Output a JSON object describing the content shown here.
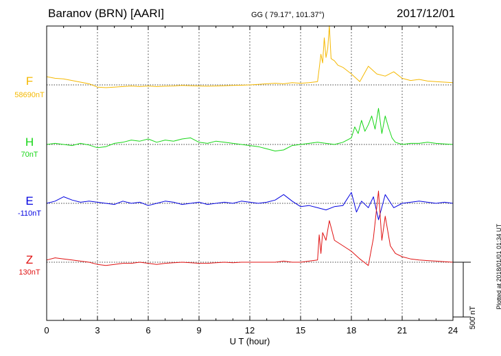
{
  "header": {
    "station": "Baranov (BRN)  [AARI]",
    "coords": "GG ( 79.17°, 101.37°)",
    "date": "2017/12/01"
  },
  "footer": {
    "plotted_note": "Plotted at 2018/01/01 01:34 UT"
  },
  "colors": {
    "F": "#f5b800",
    "H": "#16d616",
    "E": "#0000e0",
    "Z": "#e01010"
  },
  "chart_data": {
    "type": "line",
    "title": "Baranov (BRN)  [AARI]",
    "xlabel": "U T (hour)",
    "ylabel": "",
    "xlim": [
      0,
      24
    ],
    "x_ticks": [
      "0",
      "3",
      "6",
      "9",
      "12",
      "15",
      "18",
      "21",
      "24"
    ],
    "grid": true,
    "scale_bar": {
      "value": 500,
      "label": "500 nT"
    },
    "series": [
      {
        "name": "F",
        "baseline_label": "58690nT",
        "color": "#f5b800",
        "x": [
          0,
          0.5,
          1,
          1.5,
          2,
          2.5,
          3,
          3.5,
          4,
          4.5,
          5,
          5.5,
          6,
          6.5,
          7,
          7.5,
          8,
          8.5,
          9,
          9.5,
          10,
          10.5,
          11,
          11.5,
          12,
          12.5,
          13,
          13.5,
          14,
          14.5,
          15,
          15.5,
          16,
          16.1,
          16.2,
          16.3,
          16.4,
          16.5,
          16.6,
          16.7,
          16.8,
          17,
          17.2,
          17.5,
          18,
          18.5,
          19,
          19.5,
          20,
          20.5,
          21,
          21.5,
          22,
          22.5,
          23,
          23.5,
          24
        ],
        "y": [
          75,
          60,
          55,
          40,
          25,
          10,
          -20,
          -25,
          -20,
          -15,
          -10,
          -15,
          -10,
          -15,
          -12,
          -10,
          -5,
          -8,
          -10,
          -12,
          -10,
          -8,
          -5,
          -3,
          0,
          5,
          10,
          15,
          10,
          20,
          15,
          20,
          30,
          150,
          280,
          200,
          430,
          250,
          330,
          540,
          240,
          220,
          180,
          160,
          100,
          30,
          170,
          100,
          80,
          120,
          60,
          40,
          50,
          35,
          30,
          25,
          20
        ]
      },
      {
        "name": "H",
        "baseline_label": "70nT",
        "color": "#16d616",
        "x": [
          0,
          0.5,
          1,
          1.5,
          2,
          2.5,
          3,
          3.5,
          4,
          4.5,
          5,
          5.5,
          6,
          6.5,
          7,
          7.5,
          8,
          8.5,
          9,
          9.5,
          10,
          10.5,
          11,
          11.5,
          12,
          12.5,
          13,
          13.5,
          14,
          14.5,
          15,
          15.5,
          16,
          16.5,
          17,
          17.5,
          18,
          18.2,
          18.4,
          18.6,
          18.8,
          19,
          19.2,
          19.4,
          19.6,
          19.8,
          20,
          20.2,
          20.4,
          20.6,
          21,
          21.5,
          22,
          22.5,
          23,
          23.5,
          24
        ],
        "y": [
          0,
          10,
          0,
          -10,
          10,
          -5,
          -30,
          -20,
          10,
          20,
          40,
          30,
          50,
          20,
          40,
          30,
          50,
          60,
          20,
          10,
          30,
          20,
          10,
          0,
          -10,
          -20,
          -40,
          -60,
          -50,
          -10,
          0,
          10,
          20,
          10,
          0,
          20,
          60,
          160,
          100,
          220,
          120,
          180,
          260,
          140,
          330,
          100,
          260,
          150,
          60,
          20,
          0,
          10,
          10,
          20,
          10,
          5,
          0
        ]
      },
      {
        "name": "E",
        "baseline_label": "-110nT",
        "color": "#0000e0",
        "x": [
          0,
          0.5,
          1,
          1.5,
          2,
          2.5,
          3,
          3.5,
          4,
          4.5,
          5,
          5.5,
          6,
          6.5,
          7,
          7.5,
          8,
          8.5,
          9,
          9.5,
          10,
          10.5,
          11,
          11.5,
          12,
          12.5,
          13,
          13.5,
          14,
          14.5,
          15,
          15.5,
          16,
          16.5,
          17,
          17.5,
          18,
          18.3,
          18.6,
          19,
          19.3,
          19.6,
          20,
          20.5,
          21,
          21.5,
          22,
          22.5,
          23,
          23.5,
          24
        ],
        "y": [
          0,
          20,
          60,
          30,
          10,
          20,
          10,
          0,
          -10,
          20,
          0,
          10,
          -20,
          0,
          20,
          10,
          -10,
          0,
          10,
          -10,
          0,
          10,
          0,
          20,
          10,
          0,
          10,
          30,
          80,
          20,
          -30,
          -20,
          -40,
          -60,
          -30,
          -20,
          100,
          -80,
          20,
          -40,
          60,
          -150,
          80,
          -40,
          0,
          10,
          20,
          10,
          0,
          10,
          0
        ]
      },
      {
        "name": "Z",
        "baseline_label": "130nT",
        "color": "#e01010",
        "x": [
          0,
          0.5,
          1,
          1.5,
          2,
          2.5,
          3,
          3.5,
          4,
          4.5,
          5,
          5.5,
          6,
          6.5,
          7,
          7.5,
          8,
          8.5,
          9,
          9.5,
          10,
          10.5,
          11,
          11.5,
          12,
          12.5,
          13,
          13.5,
          14,
          14.5,
          15,
          15.5,
          16,
          16.1,
          16.2,
          16.3,
          16.5,
          16.7,
          17,
          17.5,
          18,
          18.5,
          19,
          19.3,
          19.6,
          19.8,
          20,
          20.3,
          20.6,
          21,
          21.5,
          22,
          22.5,
          23,
          23.5,
          24
        ],
        "y": [
          20,
          40,
          30,
          20,
          10,
          0,
          -20,
          -30,
          -20,
          -10,
          -10,
          0,
          -10,
          -20,
          -10,
          -5,
          0,
          -5,
          -10,
          -10,
          -5,
          0,
          -5,
          0,
          0,
          0,
          0,
          0,
          10,
          0,
          0,
          10,
          20,
          250,
          80,
          270,
          200,
          380,
          200,
          150,
          100,
          30,
          -30,
          220,
          650,
          200,
          420,
          150,
          80,
          50,
          30,
          20,
          15,
          10,
          5,
          0
        ]
      }
    ]
  }
}
